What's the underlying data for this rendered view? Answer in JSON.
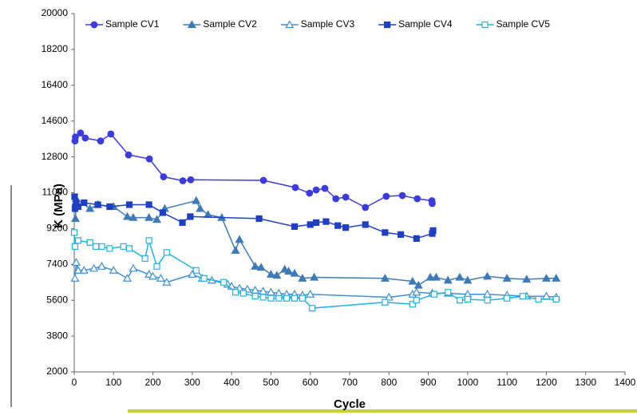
{
  "chart_data": {
    "type": "line",
    "x_label": "Cycle",
    "y_label": "K (MPa)",
    "xlim": [
      0,
      1400
    ],
    "xticks": [
      0,
      100,
      200,
      300,
      400,
      500,
      600,
      700,
      800,
      900,
      1000,
      1100,
      1200,
      1300,
      1400
    ],
    "ylim": [
      2000,
      20000
    ],
    "yticks": [
      2000,
      3800,
      5600,
      7400,
      9200,
      11000,
      12800,
      14600,
      16400,
      18200,
      20000
    ],
    "grid": false,
    "legend": "top",
    "series": [
      {
        "name": "Sample CV1",
        "color": "#3b3be0",
        "marker": "circle",
        "filled": true,
        "x": [
          2,
          3,
          16,
          28,
          67,
          93,
          138,
          191,
          227,
          276,
          296,
          481,
          562,
          598,
          615,
          637,
          665,
          690,
          740,
          793,
          834,
          872,
          909,
          910
        ],
        "values": [
          13600,
          13800,
          14000,
          13750,
          13600,
          13950,
          12900,
          12700,
          11800,
          11600,
          11650,
          11620,
          11260,
          10980,
          11140,
          11220,
          10700,
          10780,
          10260,
          10820,
          10860,
          10700,
          10600,
          10460
        ]
      },
      {
        "name": "Sample CV2",
        "color": "#3f7ab8",
        "marker": "triangle",
        "filled": true,
        "x": [
          3,
          5,
          40,
          60,
          100,
          135,
          150,
          190,
          210,
          230,
          310,
          320,
          340,
          375,
          410,
          420,
          460,
          475,
          500,
          515,
          535,
          545,
          560,
          580,
          610,
          790,
          860,
          875,
          905,
          920,
          950,
          980,
          1000,
          1050,
          1100,
          1150,
          1200,
          1225
        ],
        "values": [
          9700,
          10700,
          10200,
          10400,
          10300,
          9800,
          9750,
          9750,
          9650,
          10200,
          10600,
          10200,
          9900,
          9750,
          8100,
          8650,
          7300,
          7250,
          6900,
          6850,
          7150,
          7050,
          6950,
          6700,
          6750,
          6700,
          6550,
          6350,
          6750,
          6750,
          6600,
          6750,
          6600,
          6800,
          6700,
          6650,
          6700,
          6700
        ]
      },
      {
        "name": "Sample CV3",
        "color": "#3d8fd6",
        "marker": "triangle",
        "filled": false,
        "x": [
          2,
          5,
          10,
          25,
          50,
          70,
          100,
          135,
          150,
          190,
          200,
          220,
          235,
          300,
          325,
          350,
          390,
          400,
          420,
          440,
          460,
          480,
          500,
          520,
          540,
          560,
          580,
          600,
          800,
          860,
          870,
          910,
          950,
          1000,
          1050,
          1100,
          1150,
          1200,
          1225
        ],
        "values": [
          6700,
          7500,
          7100,
          7100,
          7200,
          7300,
          7100,
          6700,
          7200,
          6900,
          6800,
          6700,
          6500,
          6900,
          6700,
          6600,
          6400,
          6300,
          6200,
          6150,
          6100,
          6050,
          6000,
          5950,
          5900,
          5900,
          5850,
          5900,
          5750,
          5900,
          6000,
          5950,
          5950,
          5900,
          5900,
          5850,
          5800,
          5800,
          5750
        ]
      },
      {
        "name": "Sample CV4",
        "color": "#1f3fc4",
        "marker": "square",
        "filled": true,
        "x": [
          1,
          2,
          3,
          5,
          10,
          25,
          60,
          90,
          140,
          190,
          225,
          275,
          295,
          470,
          560,
          600,
          615,
          640,
          670,
          690,
          740,
          790,
          830,
          870,
          910,
          912
        ],
        "values": [
          10800,
          10200,
          10300,
          10500,
          10300,
          10500,
          10400,
          10300,
          10400,
          10400,
          10000,
          9500,
          9800,
          9700,
          9300,
          9400,
          9500,
          9550,
          9350,
          9250,
          9400,
          9000,
          8900,
          8700,
          8950,
          9100
        ]
      },
      {
        "name": "Sample CV5",
        "color": "#1fb3e3",
        "marker": "square",
        "filled": false,
        "x": [
          0,
          2,
          10,
          40,
          55,
          70,
          90,
          125,
          140,
          180,
          190,
          210,
          235,
          310,
          330,
          380,
          410,
          430,
          460,
          480,
          500,
          520,
          540,
          560,
          580,
          605,
          790,
          860,
          870,
          915,
          950,
          980,
          1000,
          1050,
          1100,
          1140,
          1180,
          1225
        ],
        "values": [
          9000,
          8300,
          8600,
          8500,
          8300,
          8300,
          8200,
          8300,
          8200,
          7700,
          8600,
          7300,
          8000,
          7100,
          6700,
          6500,
          6000,
          5950,
          5800,
          5750,
          5700,
          5700,
          5700,
          5700,
          5700,
          5200,
          5500,
          5400,
          5600,
          5900,
          6000,
          5600,
          5650,
          5600,
          5700,
          5800,
          5650,
          5650
        ]
      }
    ]
  }
}
